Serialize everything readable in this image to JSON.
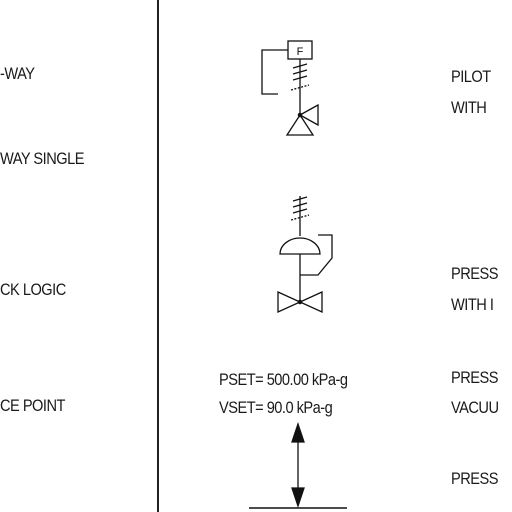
{
  "left_labels": [
    {
      "text": "-WAY"
    },
    {
      "text": "WAY SINGLE"
    },
    {
      "text": "CK LOGIC"
    },
    {
      "text": "CE POINT"
    }
  ],
  "right_labels": [
    {
      "text": "PILOT"
    },
    {
      "text": "WITH"
    },
    {
      "text": "PRESS"
    },
    {
      "text": "WITH I"
    },
    {
      "text": "PRESS"
    },
    {
      "text": "VACUU"
    },
    {
      "text": "PRESS"
    }
  ],
  "actuator_box_letter": "F",
  "setpoints": {
    "pset": "PSET= 500.00 kPa-g",
    "vset": "VSET= 90.0 kPa-g"
  }
}
